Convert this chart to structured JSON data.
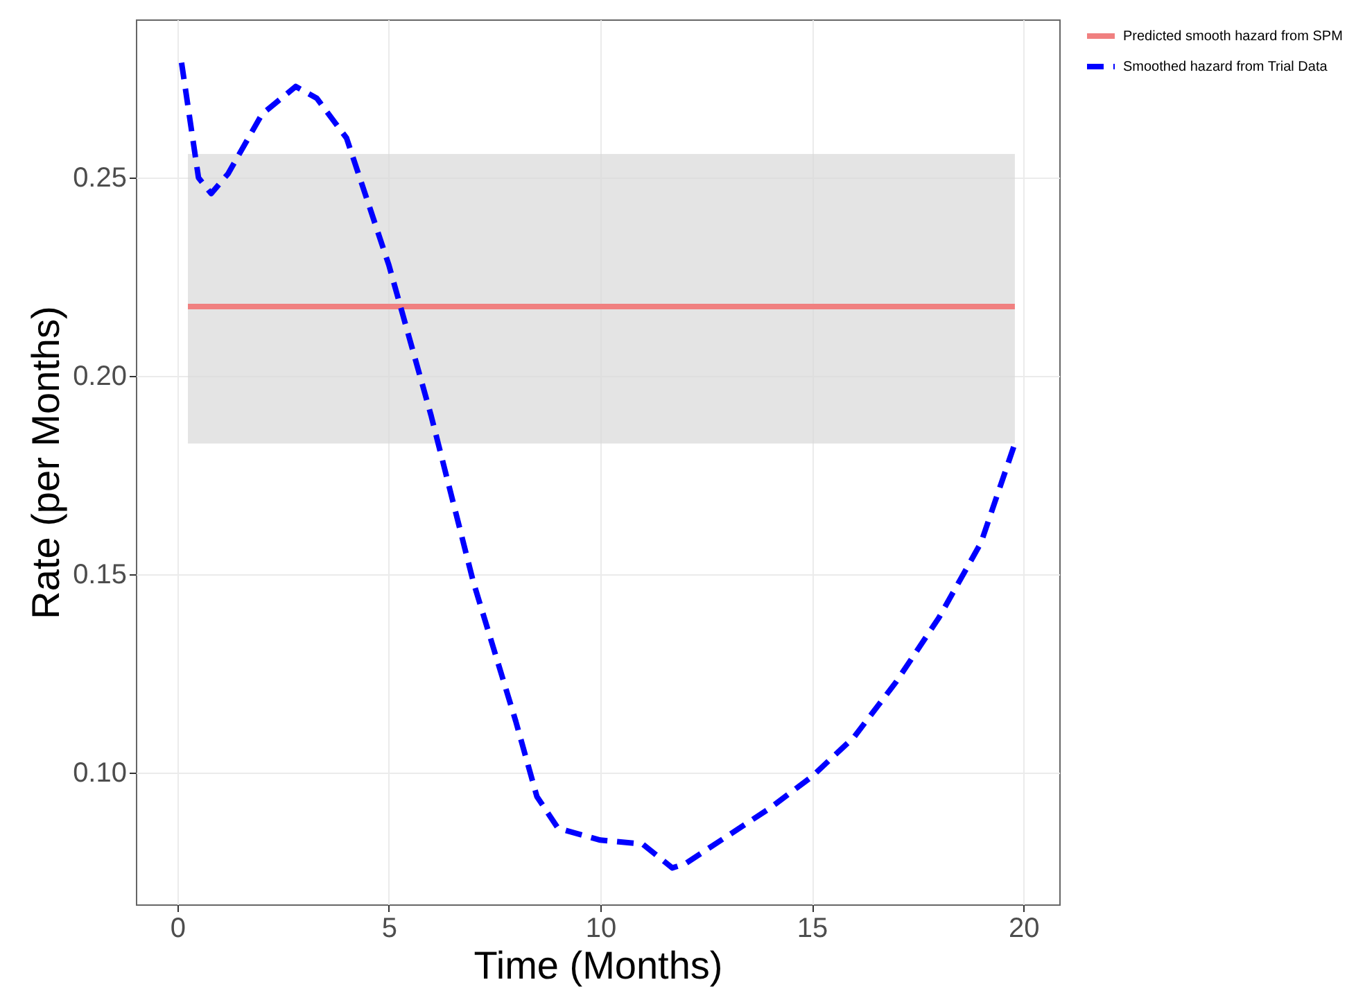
{
  "chart_data": {
    "type": "line",
    "xlabel": "Time (Months)",
    "ylabel": "Rate (per Months)",
    "xlim": [
      -0.98,
      20.85
    ],
    "ylim": [
      0.0668,
      0.2899
    ],
    "xticks": [
      0,
      5,
      10,
      15,
      20
    ],
    "yticks": [
      {
        "value": 0.1,
        "label": "0.10"
      },
      0.15,
      {
        "value": 0.2,
        "label": "0.20"
      },
      0.25
    ],
    "grid": true,
    "legend": "right",
    "series": [
      {
        "name": "Predicted smooth hazard from SPM",
        "color": "#f08080",
        "line_style": "solid",
        "x": [
          0.25,
          19.8
        ],
        "values": [
          0.2175,
          0.2175
        ],
        "lower": [
          0.183,
          0.183
        ],
        "upper": [
          0.256,
          0.256
        ]
      },
      {
        "name": "Smoothed hazard from Trial Data",
        "color": "#0000ff",
        "line_style": "dashed",
        "x": [
          0.1,
          0.5,
          0.8,
          1.2,
          2,
          2.8,
          3.3,
          4,
          5,
          6,
          7,
          8,
          8.5,
          9,
          10,
          11,
          11.7,
          12,
          13,
          14,
          15,
          16,
          17,
          18,
          19,
          19.8
        ],
        "values": [
          0.279,
          0.25,
          0.246,
          0.251,
          0.266,
          0.273,
          0.27,
          0.26,
          0.228,
          0.19,
          0.148,
          0.113,
          0.094,
          0.086,
          0.083,
          0.082,
          0.076,
          0.077,
          0.084,
          0.091,
          0.099,
          0.109,
          0.123,
          0.139,
          0.158,
          0.183
        ]
      }
    ]
  }
}
